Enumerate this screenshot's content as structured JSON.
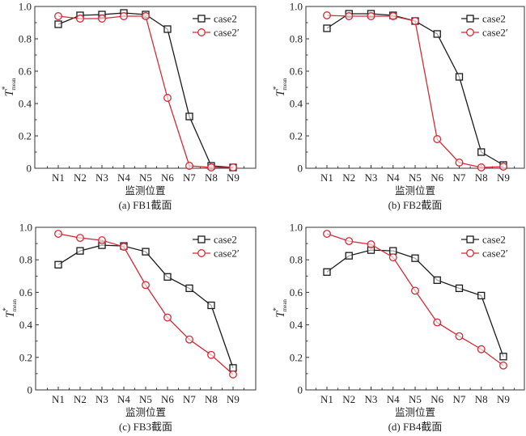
{
  "chart_data": [
    {
      "type": "line",
      "panel": "a",
      "caption": "(a) FB1截面",
      "xlabel": "监测位置",
      "ylabel": {
        "base": "T",
        "sup": "*",
        "sub": "mean"
      },
      "categories": [
        "N1",
        "N2",
        "N3",
        "N4",
        "N5",
        "N6",
        "N7",
        "N8",
        "N9"
      ],
      "ylim": [
        0,
        1.0
      ],
      "yticks": [
        "0",
        "0.2",
        "0.4",
        "0.6",
        "0.8",
        "1.0"
      ],
      "legend": "top-right",
      "series": [
        {
          "name": "case2",
          "color": "#1a1a1a",
          "marker": "square",
          "values": [
            0.89,
            0.945,
            0.95,
            0.96,
            0.95,
            0.86,
            0.32,
            0.015,
            0.005
          ]
        },
        {
          "name": "case2′",
          "color": "#d42a35",
          "marker": "circle",
          "values": [
            0.94,
            0.925,
            0.925,
            0.94,
            0.94,
            0.435,
            0.015,
            0.005,
            0.005
          ]
        }
      ]
    },
    {
      "type": "line",
      "panel": "b",
      "caption": "(b) FB2截面",
      "xlabel": "监测位置",
      "ylabel": {
        "base": "T",
        "sup": "*",
        "sub": "mean"
      },
      "categories": [
        "N1",
        "N2",
        "N3",
        "N4",
        "N5",
        "N6",
        "N7",
        "N8",
        "N9"
      ],
      "ylim": [
        0,
        1.0
      ],
      "yticks": [
        "0",
        "0.2",
        "0.4",
        "0.6",
        "0.8",
        "1.0"
      ],
      "legend": "top-right",
      "series": [
        {
          "name": "case2",
          "color": "#1a1a1a",
          "marker": "square",
          "values": [
            0.865,
            0.955,
            0.955,
            0.945,
            0.91,
            0.83,
            0.565,
            0.1,
            0.02
          ]
        },
        {
          "name": "case2′",
          "color": "#d42a35",
          "marker": "circle",
          "values": [
            0.945,
            0.94,
            0.94,
            0.94,
            0.91,
            0.18,
            0.035,
            0.005,
            0.01
          ]
        }
      ]
    },
    {
      "type": "line",
      "panel": "c",
      "caption": "(c) FB3截面",
      "xlabel": "监测位置",
      "ylabel": {
        "base": "T",
        "sup": "*",
        "sub": "mean"
      },
      "categories": [
        "N1",
        "N2",
        "N3",
        "N4",
        "N5",
        "N6",
        "N7",
        "N8",
        "N9"
      ],
      "ylim": [
        0,
        1.0
      ],
      "yticks": [
        "0",
        "0.2",
        "0.4",
        "0.6",
        "0.8",
        "1.0"
      ],
      "legend": "top-right",
      "series": [
        {
          "name": "case2",
          "color": "#1a1a1a",
          "marker": "square",
          "values": [
            0.77,
            0.855,
            0.89,
            0.885,
            0.85,
            0.695,
            0.625,
            0.52,
            0.135
          ]
        },
        {
          "name": "case2′",
          "color": "#d42a35",
          "marker": "circle",
          "values": [
            0.96,
            0.935,
            0.92,
            0.88,
            0.645,
            0.445,
            0.31,
            0.215,
            0.095
          ]
        }
      ]
    },
    {
      "type": "line",
      "panel": "d",
      "caption": "(d) FB4截面",
      "xlabel": "监测位置",
      "ylabel": {
        "base": "T",
        "sup": "*",
        "sub": "mean"
      },
      "categories": [
        "N1",
        "N2",
        "N3",
        "N4",
        "N5",
        "N6",
        "N7",
        "N8",
        "N9"
      ],
      "ylim": [
        0,
        1.0
      ],
      "yticks": [
        "0",
        "0.2",
        "0.4",
        "0.6",
        "0.8",
        "1.0"
      ],
      "legend": "top-right",
      "series": [
        {
          "name": "case2",
          "color": "#1a1a1a",
          "marker": "square",
          "values": [
            0.725,
            0.825,
            0.86,
            0.855,
            0.81,
            0.675,
            0.625,
            0.58,
            0.205
          ]
        },
        {
          "name": "case2′",
          "color": "#d42a35",
          "marker": "circle",
          "values": [
            0.96,
            0.915,
            0.895,
            0.815,
            0.61,
            0.415,
            0.33,
            0.25,
            0.15
          ]
        }
      ]
    }
  ]
}
